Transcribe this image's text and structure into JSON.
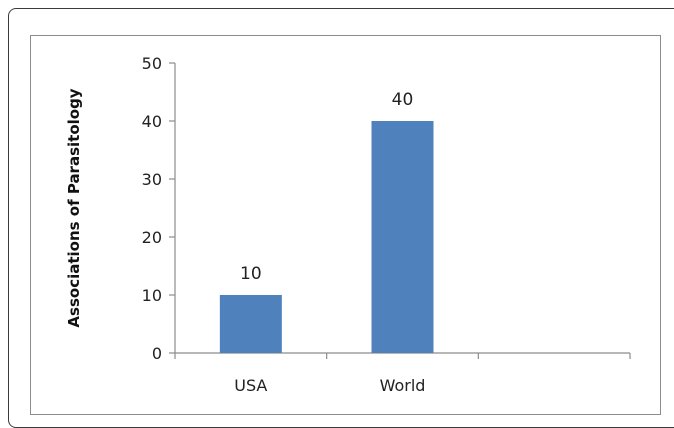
{
  "chart_data": {
    "type": "bar",
    "categories": [
      "USA",
      "World"
    ],
    "values": [
      10,
      40
    ],
    "data_labels": [
      "10",
      "40"
    ],
    "title": "",
    "xlabel": "",
    "ylabel": "Associations  of Parasitology",
    "ylim": [
      0,
      50
    ],
    "yticks": [
      0,
      10,
      20,
      30,
      40,
      50
    ],
    "grid": false,
    "legend": "none",
    "bar_color": "#4f81bd"
  }
}
